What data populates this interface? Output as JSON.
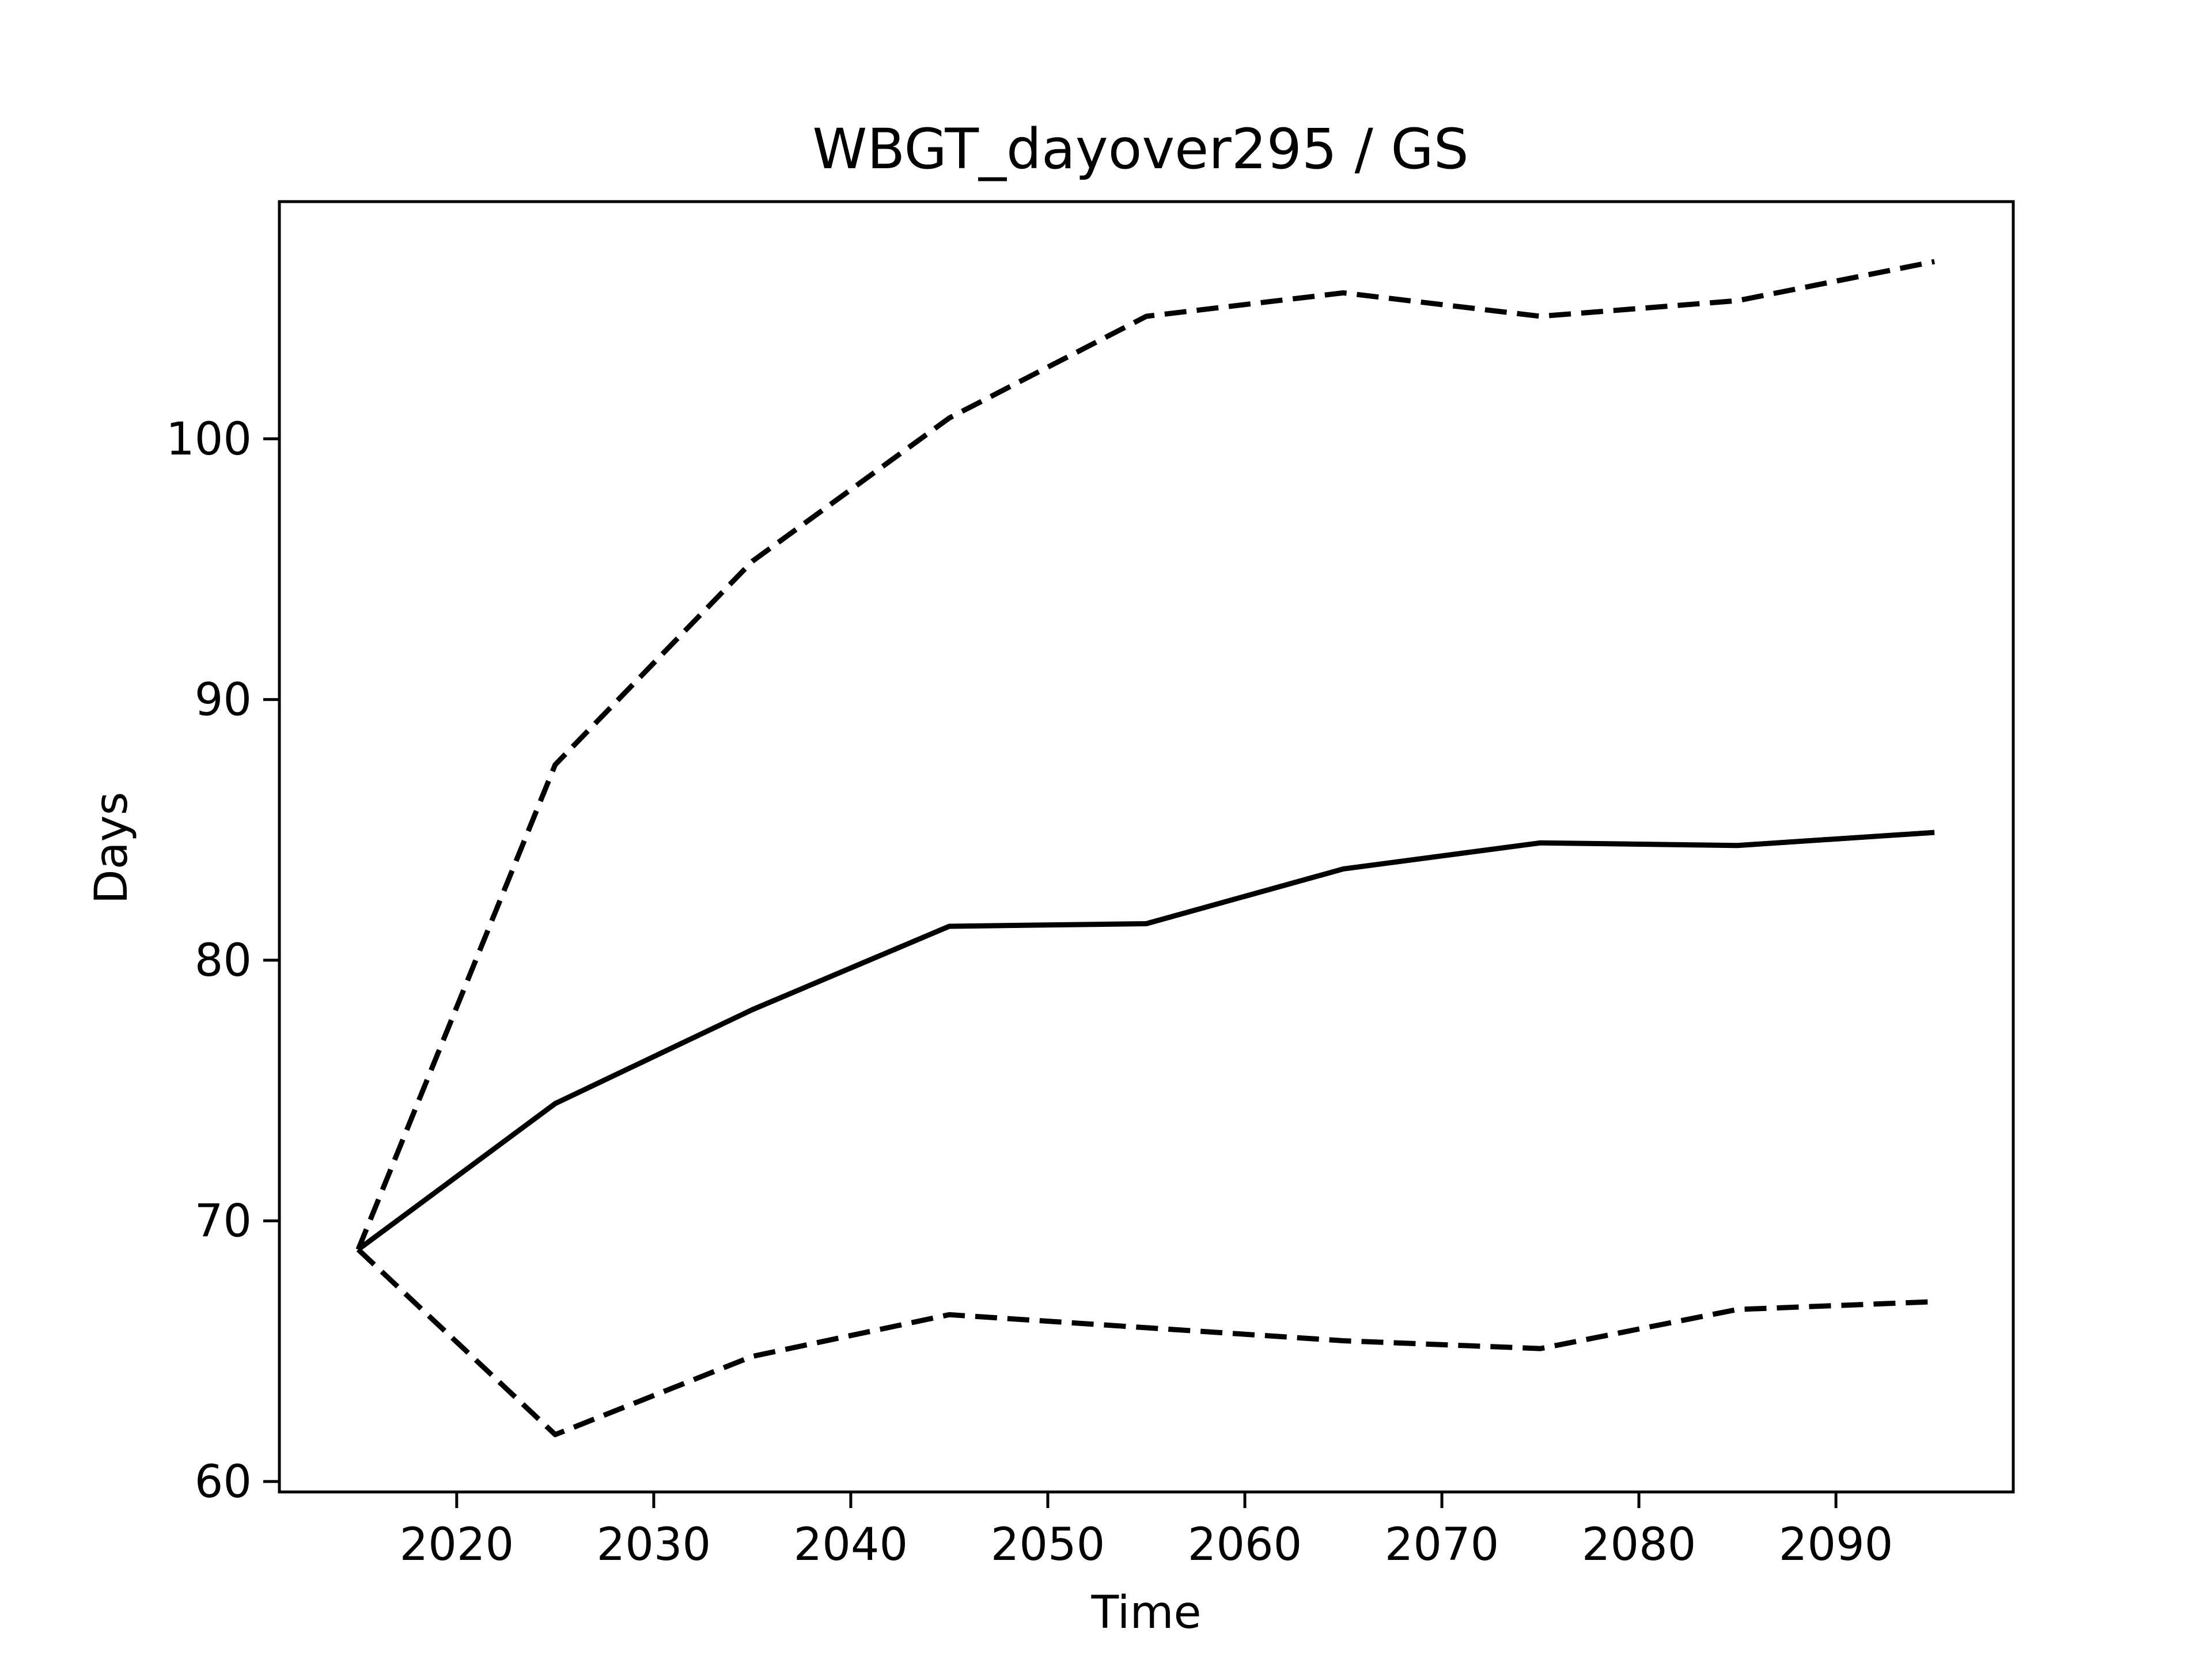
{
  "chart_data": {
    "type": "line",
    "title": "WBGT_dayover295 / GS",
    "xlabel": "Time",
    "ylabel": "Days",
    "x": [
      2015,
      2025,
      2035,
      2045,
      2055,
      2065,
      2075,
      2085,
      2095
    ],
    "xlim": [
      2011,
      2099
    ],
    "ylim": [
      59.6,
      109.1
    ],
    "xticks": [
      2020,
      2030,
      2040,
      2050,
      2060,
      2070,
      2080,
      2090
    ],
    "yticks": [
      60,
      70,
      80,
      90,
      100
    ],
    "grid": false,
    "legend": "none",
    "series": [
      {
        "style": "dashed",
        "color": "#000000",
        "values": [
          68.9,
          87.5,
          95.3,
          100.8,
          104.7,
          105.6,
          104.7,
          105.3,
          106.8
        ]
      },
      {
        "style": "solid",
        "color": "#000000",
        "values": [
          68.9,
          74.5,
          78.1,
          81.3,
          81.4,
          83.5,
          84.5,
          84.4,
          84.9
        ]
      },
      {
        "style": "dashed",
        "color": "#000000",
        "values": [
          68.9,
          61.8,
          64.8,
          66.4,
          65.9,
          65.4,
          65.1,
          66.6,
          66.9
        ]
      }
    ]
  }
}
